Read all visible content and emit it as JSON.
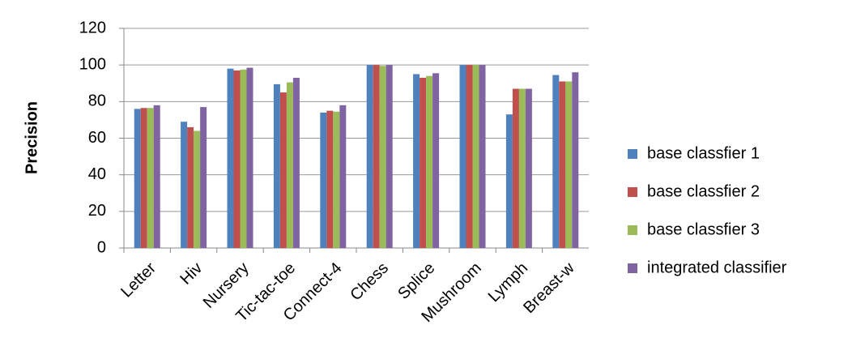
{
  "chart_data": {
    "type": "bar",
    "y_label": "Precision",
    "categories": [
      "Letter",
      "Hiv",
      "Nursery",
      "Tic-tac-toe",
      "Connect-4",
      "Chess",
      "Splice",
      "Mushroom",
      "Lymph",
      "Breast-w"
    ],
    "series": [
      {
        "name": "base classfier 1",
        "color": "#4f81bd",
        "values": [
          76,
          69,
          98,
          89.5,
          74,
          100,
          95,
          100,
          73,
          94.5
        ]
      },
      {
        "name": "base classfier 2",
        "color": "#c0504d",
        "values": [
          76.5,
          66,
          97,
          85,
          75,
          100,
          93,
          100,
          87,
          91
        ]
      },
      {
        "name": "base classfier 3",
        "color": "#9bbb59",
        "values": [
          76.5,
          64,
          97.5,
          90.5,
          74.5,
          99.5,
          94,
          100,
          87,
          91
        ]
      },
      {
        "name": "integrated classifier",
        "color": "#8064a2",
        "values": [
          78,
          77,
          98.5,
          93,
          78,
          100,
          95.5,
          100,
          87,
          96
        ]
      }
    ],
    "ylim": [
      0,
      120
    ],
    "yticks": [
      0,
      20,
      40,
      60,
      80,
      100,
      120
    ],
    "grid": true,
    "legend": "right"
  }
}
